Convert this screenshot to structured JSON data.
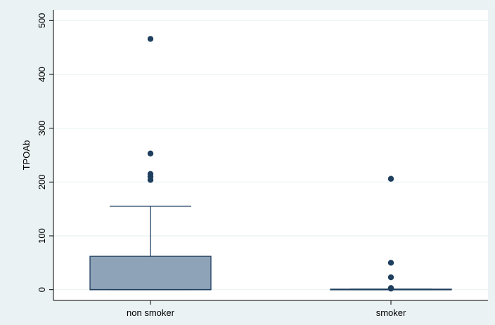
{
  "chart_data": {
    "type": "box",
    "ylabel": "TPOAb",
    "xlabel": "",
    "ylim": [
      -20,
      520
    ],
    "yticks": [
      0,
      100,
      200,
      300,
      400,
      500
    ],
    "grid": true,
    "legend": "none",
    "colors": {
      "outer_background": "#eaf2f3",
      "plot_background": "#ffffff",
      "gridline": "#eaf2f3",
      "box_fill": "#8fa3b8",
      "box_stroke": "#1f3f5f",
      "outlier": "#1f3f5f",
      "axis": "#000000"
    },
    "categories": [
      "non smoker",
      "smoker"
    ],
    "boxes": [
      {
        "category": "non smoker",
        "min": 0,
        "q1": 0,
        "median": 0,
        "q3": 62,
        "max": 155,
        "outliers": [
          204,
          210,
          215,
          253,
          466
        ]
      },
      {
        "category": "smoker",
        "min": 0,
        "q1": 0,
        "median": 0,
        "q3": 1,
        "max": 1,
        "outliers": [
          2,
          3,
          23,
          50,
          206
        ]
      }
    ]
  }
}
